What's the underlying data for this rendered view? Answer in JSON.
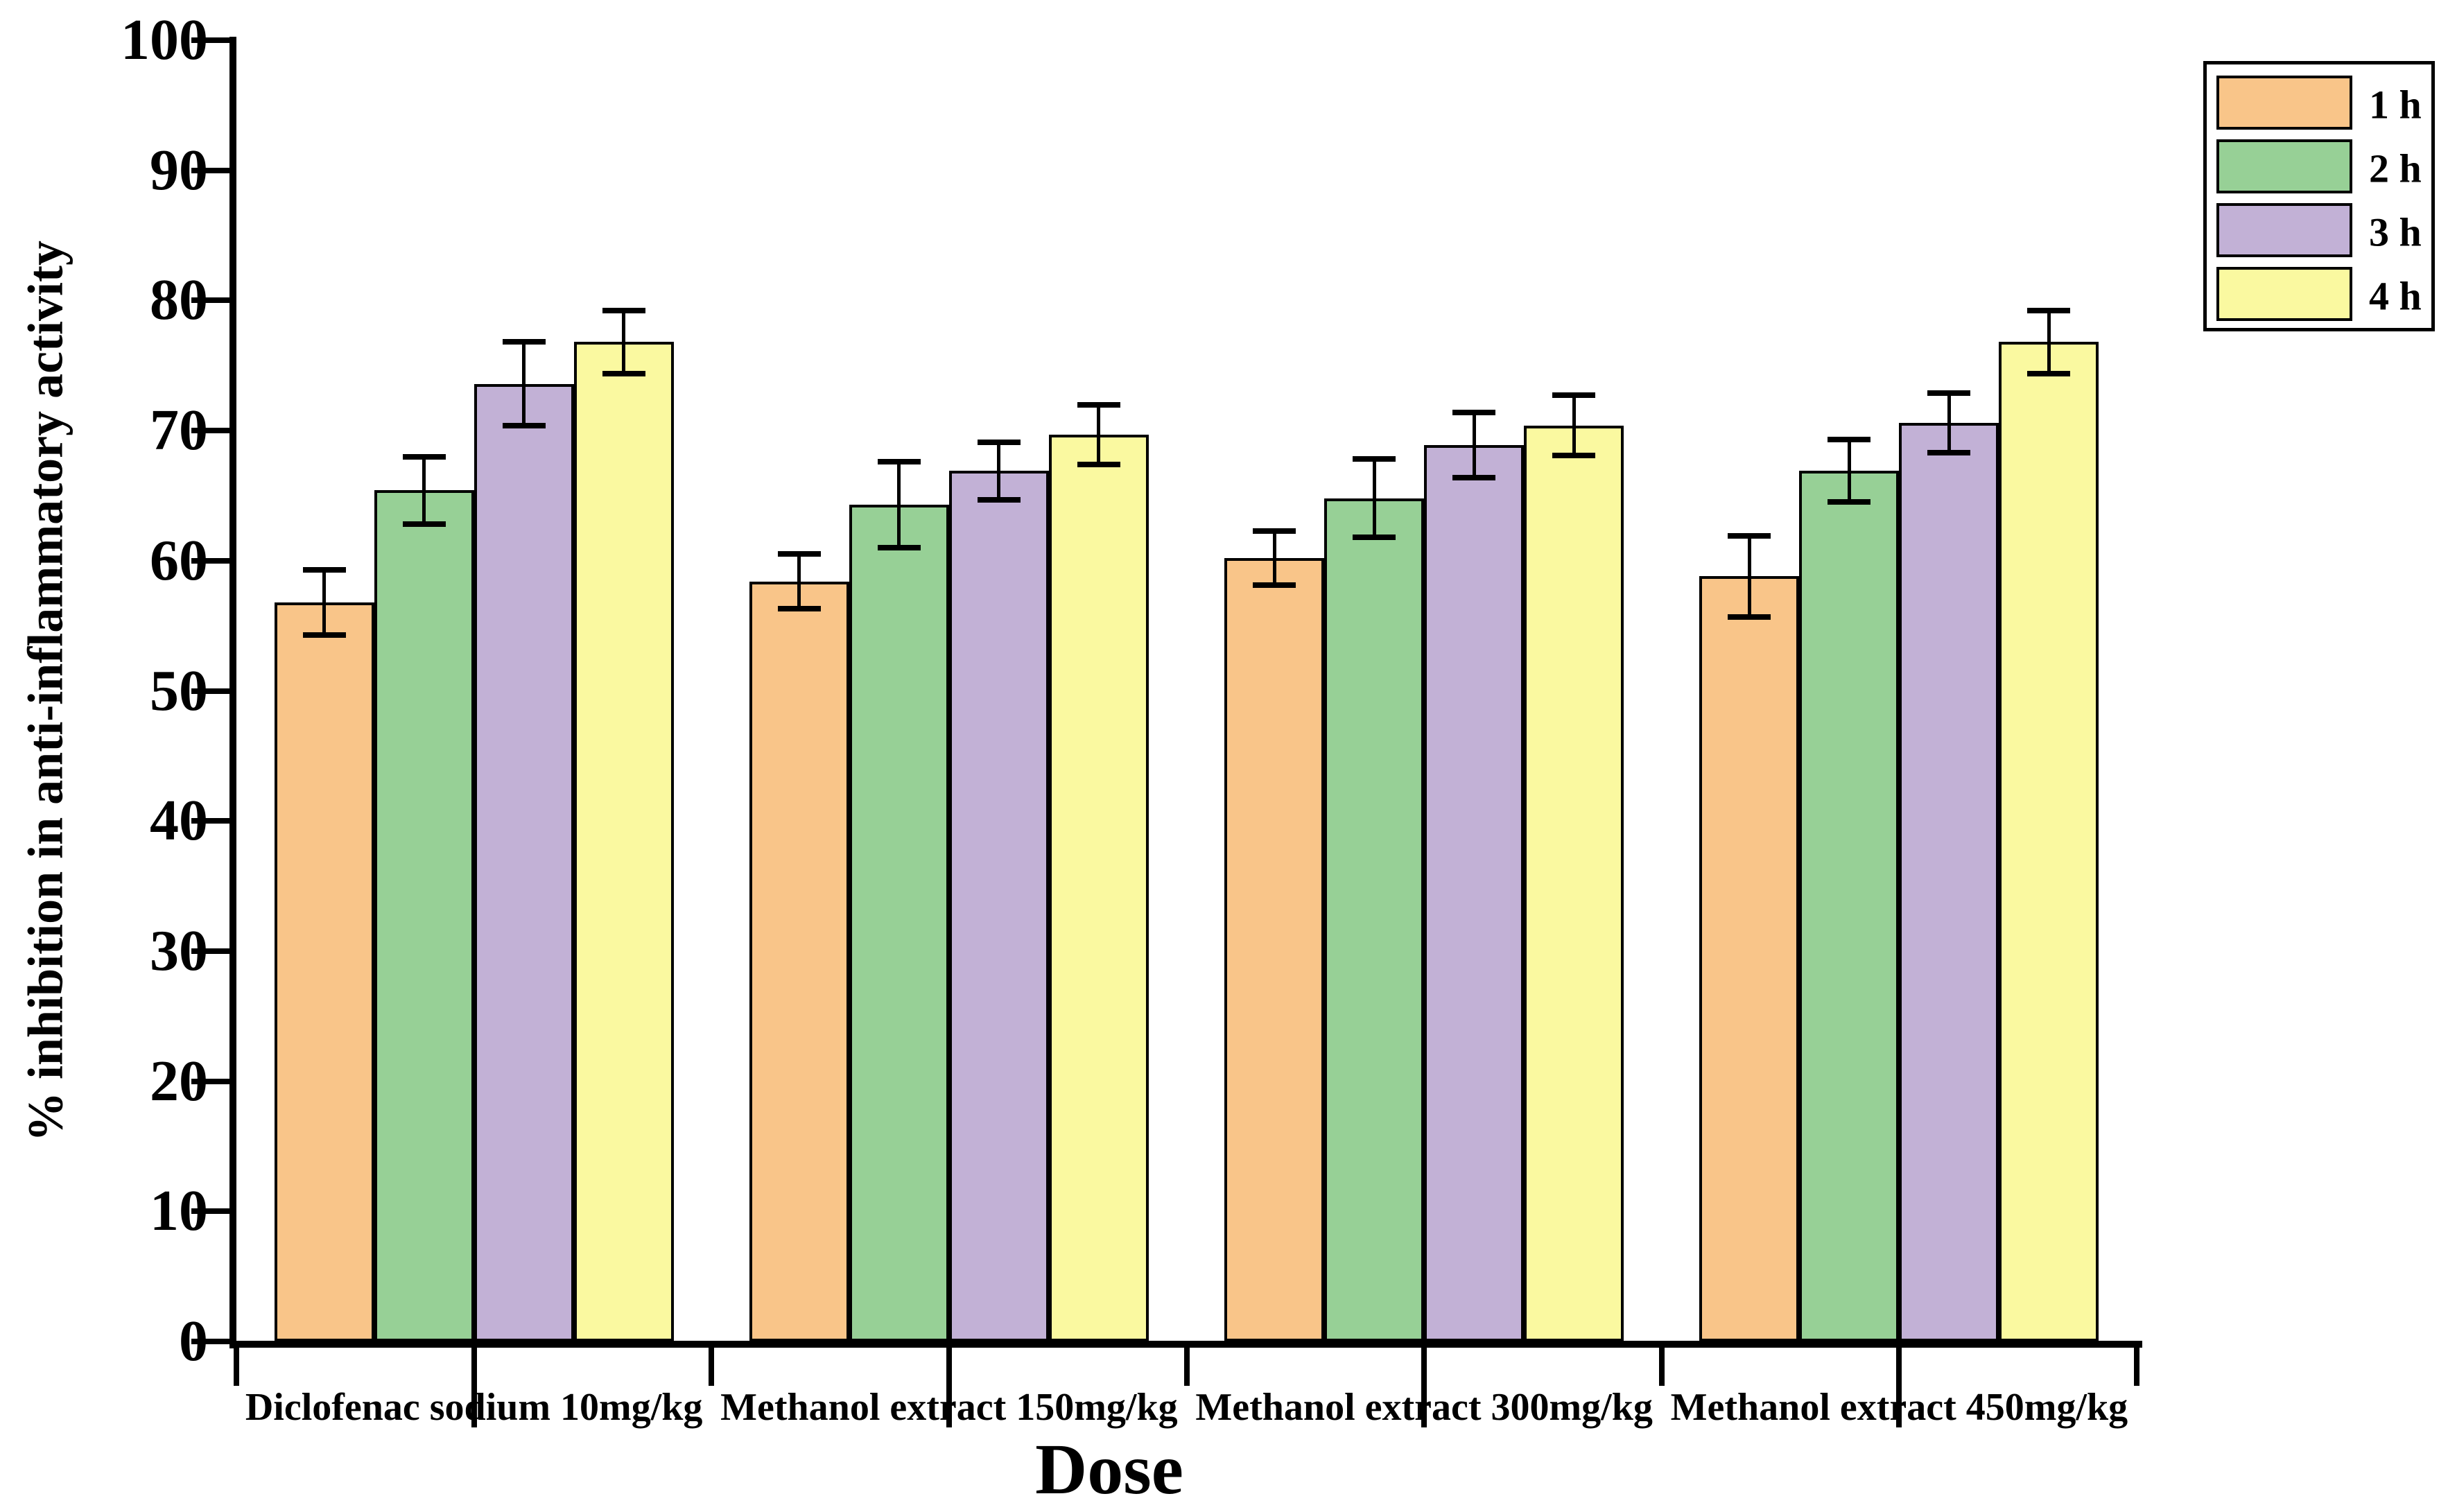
{
  "figure": {
    "background": "#ffffff",
    "axis_color": "#000000"
  },
  "chart_data": {
    "type": "bar",
    "title": "",
    "xlabel": "Dose",
    "ylabel": "% inhibition in anti-inflammatory activity",
    "categories": [
      "Diclofenac sodium 10mg/kg",
      "Methanol extract 150mg/kg",
      "Methanol extract 300mg/kg",
      "Methanol extract 450mg/kg"
    ],
    "series": [
      {
        "name": "1 h",
        "color": "#F9C589",
        "values": [
          56.8,
          58.4,
          60.2,
          58.8
        ],
        "errors": [
          2.5,
          2.1,
          2.1,
          3.1
        ]
      },
      {
        "name": "2 h",
        "color": "#97D096",
        "values": [
          65.4,
          64.3,
          64.8,
          66.9
        ],
        "errors": [
          2.6,
          3.3,
          3.0,
          2.4
        ]
      },
      {
        "name": "3 h",
        "color": "#C2B1D6",
        "values": [
          73.6,
          66.9,
          68.9,
          70.6
        ],
        "errors": [
          3.2,
          2.2,
          2.5,
          2.3
        ]
      },
      {
        "name": "4 h",
        "color": "#FAF9A0",
        "values": [
          76.8,
          69.7,
          70.4,
          76.8
        ],
        "errors": [
          2.4,
          2.3,
          2.3,
          2.4
        ]
      }
    ],
    "ylim": [
      0,
      100
    ],
    "yticks": [
      0,
      10,
      20,
      30,
      40,
      50,
      60,
      70,
      80,
      90,
      100
    ],
    "grid": false,
    "legend_position": "top-right",
    "bar_edge_color": "#000000",
    "error_bar_color": "#000000"
  }
}
